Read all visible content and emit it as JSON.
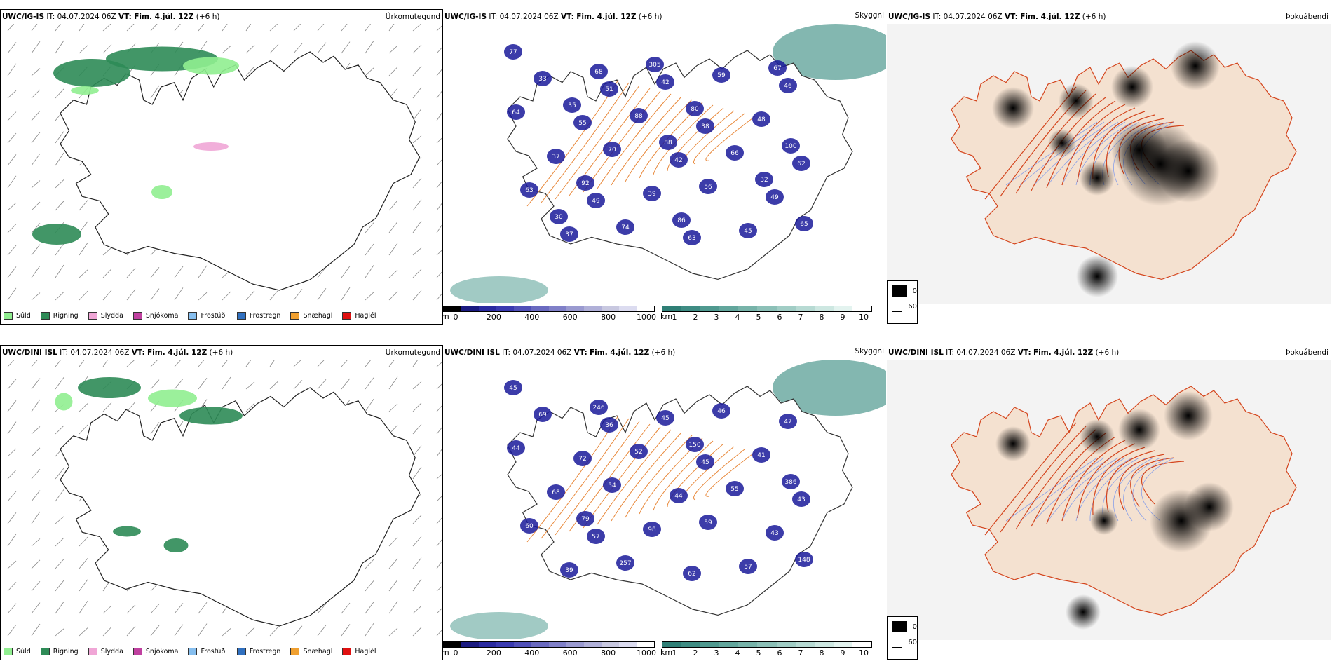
{
  "rows": [
    {
      "precip": {
        "model": "UWC/IG-IS",
        "it_label": "IT:",
        "it_value": "04.07.2024 06Z",
        "vt_label": "VT:",
        "vt_value": "Fim. 4.júl. 12Z",
        "lead": "(+6 h)",
        "product": "Úrkomutegund"
      },
      "cloud": {
        "model": "UWC/IG-IS",
        "it_label": "IT:",
        "it_value": "04.07.2024 06Z",
        "vt_label": "VT:",
        "vt_value": "Fim. 4.júl. 12Z",
        "lead": "(+6 h)",
        "product": "Skyggni",
        "labels": [
          "77",
          "51",
          "38",
          "62",
          "49",
          "63",
          "46",
          "55",
          "42",
          "49",
          "37",
          "42",
          "48",
          "37",
          "39",
          "45",
          "33",
          "88",
          "66",
          "63",
          "74",
          "59",
          "64",
          "70",
          "56",
          "65",
          "68",
          "80",
          "100",
          "92",
          "86",
          "67",
          "35",
          "88",
          "32",
          "30",
          "305"
        ]
      },
      "fog": {
        "model": "UWC/IG-IS",
        "it_label": "IT:",
        "it_value": "04.07.2024 06Z",
        "vt_label": "VT:",
        "vt_value": "Fim. 4.júl. 12Z",
        "lead": "(+6 h)",
        "product": "Þokuábendi"
      }
    },
    {
      "precip": {
        "model": "UWC/DINI ISL",
        "it_label": "IT:",
        "it_value": "04.07.2024 06Z",
        "vt_label": "VT:",
        "vt_value": "Fim. 4.júl. 12Z",
        "lead": "(+6 h)",
        "product": "Úrkomutegund"
      },
      "cloud": {
        "model": "UWC/DINI ISL",
        "it_label": "IT:",
        "it_value": "04.07.2024 06Z",
        "vt_label": "VT:",
        "vt_value": "Fim. 4.júl. 12Z",
        "lead": "(+6 h)",
        "product": "Skyggni",
        "labels": [
          "45",
          "36",
          "45",
          "43",
          "57",
          "62",
          "47",
          "72",
          "44",
          "43",
          "39",
          "45",
          "41",
          "68",
          "98",
          "57",
          "69",
          "52",
          "55",
          "60",
          "257",
          "46",
          "44",
          "54",
          "59",
          "148",
          "246",
          "150",
          "386",
          "79"
        ]
      },
      "fog": {
        "model": "UWC/DINI ISL",
        "it_label": "IT:",
        "it_value": "04.07.2024 06Z",
        "vt_label": "VT:",
        "vt_value": "Fim. 4.júl. 12Z",
        "lead": "(+6 h)",
        "product": "Þokuábendi"
      }
    }
  ],
  "precip_legend": [
    {
      "label": "Súld",
      "color": "#90ee90"
    },
    {
      "label": "Rigning",
      "color": "#2e8b57"
    },
    {
      "label": "Slydda",
      "color": "#f0a6d6"
    },
    {
      "label": "Snjókoma",
      "color": "#c040a0"
    },
    {
      "label": "Frostúði",
      "color": "#87bfef"
    },
    {
      "label": "Frostregn",
      "color": "#3070c0"
    },
    {
      "label": "Snæhagl",
      "color": "#f0a030"
    },
    {
      "label": "Haglél",
      "color": "#e01010"
    }
  ],
  "height_scale": {
    "unit": "m",
    "ticks": [
      "0",
      "200",
      "400",
      "600",
      "800",
      "1000"
    ],
    "colors": [
      "#000000",
      "#1a1a80",
      "#2a2aa0",
      "#3a3ab0",
      "#5050b8",
      "#6a6ac0",
      "#8080c8",
      "#9a9ad0",
      "#b0b0d8",
      "#c8c8e0",
      "#dcdcf0",
      "#ffffff"
    ]
  },
  "vis_scale": {
    "unit": "km",
    "ticks": [
      "1",
      "2",
      "3",
      "4",
      "5",
      "6",
      "7",
      "8",
      "9",
      "10"
    ],
    "colors": [
      "#2f7f76",
      "#3e8c83",
      "#4f998f",
      "#62a69c",
      "#77b3a9",
      "#8cc0b7",
      "#a1cdc5",
      "#b7dad3",
      "#cde7e1",
      "#e3f3ef",
      "#ffffff"
    ]
  },
  "fog_legend": [
    {
      "label": "0",
      "color": "#000000"
    },
    {
      "label": "60",
      "color": "#ffffff"
    }
  ]
}
